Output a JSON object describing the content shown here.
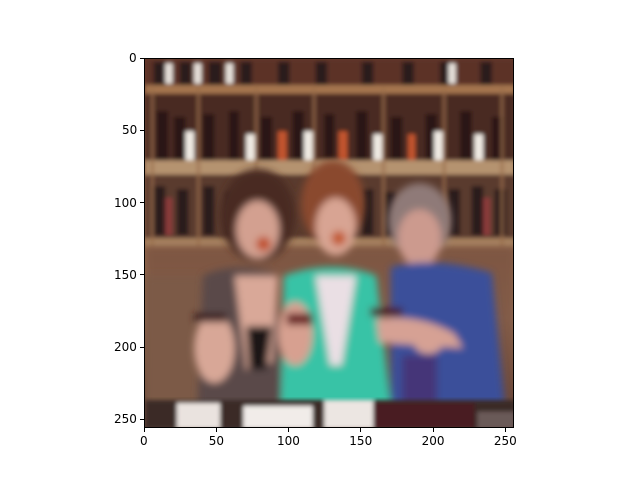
{
  "figure": {
    "type": "image-display",
    "description_visible": "",
    "x_axis": {
      "ticks": [
        0,
        50,
        100,
        150,
        200,
        250
      ],
      "tick_labels": [
        "0",
        "50",
        "100",
        "150",
        "200",
        "250"
      ],
      "range": [
        0,
        256
      ]
    },
    "y_axis": {
      "ticks": [
        0,
        50,
        100,
        150,
        200,
        250
      ],
      "tick_labels": [
        "0",
        "50",
        "100",
        "150",
        "200",
        "250"
      ],
      "range": [
        0,
        256
      ],
      "inverted": true
    },
    "colors": {
      "shelf_wood": "#8a5a36",
      "wall_warm": "#b08a6a",
      "wine_dark": "#3a2424",
      "teal_top": "#39c3a6",
      "blue_shirt": "#3b4f9a",
      "skin": "#d7a08d",
      "table_dark": "#3a2a28"
    }
  }
}
